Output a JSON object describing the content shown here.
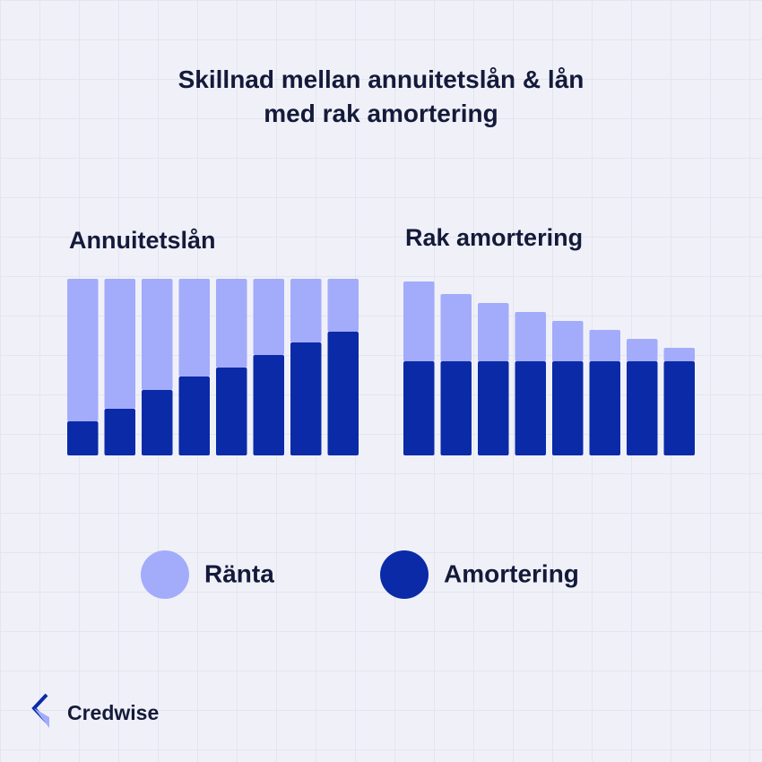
{
  "title": "Skillnad mellan annuitetslån & lån med rak amortering",
  "brand": "Credwise",
  "chart_data": [
    {
      "type": "bar",
      "stacked": true,
      "title": "Annuitetslån",
      "categories": [
        null,
        null,
        null,
        null,
        null,
        null,
        null,
        null
      ],
      "ylim": [
        0,
        200
      ],
      "series": [
        {
          "name": "Ränta",
          "color": "#a3abfb",
          "values": [
            159,
            145,
            124,
            109,
            99,
            85,
            71,
            59
          ]
        },
        {
          "name": "Amortering",
          "color": "#0a2aa8",
          "values": [
            38,
            52,
            73,
            88,
            98,
            112,
            126,
            138
          ]
        }
      ]
    },
    {
      "type": "bar",
      "stacked": true,
      "title": "Rak amortering",
      "categories": [
        null,
        null,
        null,
        null,
        null,
        null,
        null,
        null
      ],
      "ylim": [
        0,
        200
      ],
      "series": [
        {
          "name": "Ränta",
          "color": "#a3abfb",
          "values": [
            89,
            75,
            65,
            55,
            45,
            35,
            25,
            15
          ]
        },
        {
          "name": "Amortering",
          "color": "#0a2aa8",
          "values": [
            105,
            105,
            105,
            105,
            105,
            105,
            105,
            105
          ]
        }
      ]
    }
  ]
}
